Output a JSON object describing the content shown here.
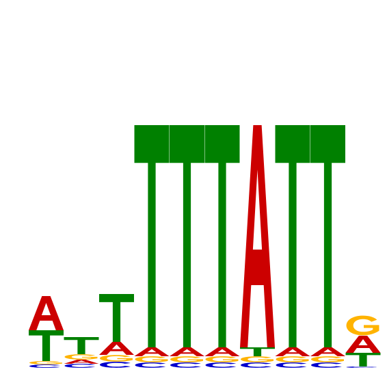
{
  "chart_data": {
    "type": "sequence-logo",
    "title": "",
    "xlabel": "",
    "ylabel": "",
    "colors": {
      "A": "#cc0000",
      "C": "#0000cc",
      "G": "#ffb300",
      "T": "#008000"
    },
    "positions": [
      {
        "index": 1,
        "letters": [
          {
            "base": "C",
            "height": 0.05
          },
          {
            "base": "G",
            "height": 0.05
          },
          {
            "base": "T",
            "height": 0.45
          },
          {
            "base": "A",
            "height": 0.5
          }
        ]
      },
      {
        "index": 2,
        "letters": [
          {
            "base": "C",
            "height": 0.06
          },
          {
            "base": "A",
            "height": 0.06
          },
          {
            "base": "G",
            "height": 0.08
          },
          {
            "base": "T",
            "height": 0.25
          }
        ]
      },
      {
        "index": 3,
        "letters": [
          {
            "base": "C",
            "height": 0.09
          },
          {
            "base": "G",
            "height": 0.1
          },
          {
            "base": "A",
            "height": 0.19
          },
          {
            "base": "T",
            "height": 0.7
          }
        ]
      },
      {
        "index": 4,
        "letters": [
          {
            "base": "C",
            "height": 0.08
          },
          {
            "base": "G",
            "height": 0.09
          },
          {
            "base": "A",
            "height": 0.13
          },
          {
            "base": "T",
            "height": 3.25
          }
        ]
      },
      {
        "index": 5,
        "letters": [
          {
            "base": "C",
            "height": 0.08
          },
          {
            "base": "G",
            "height": 0.09
          },
          {
            "base": "A",
            "height": 0.13
          },
          {
            "base": "T",
            "height": 3.25
          }
        ]
      },
      {
        "index": 6,
        "letters": [
          {
            "base": "C",
            "height": 0.08
          },
          {
            "base": "G",
            "height": 0.09
          },
          {
            "base": "A",
            "height": 0.13
          },
          {
            "base": "T",
            "height": 3.25
          }
        ]
      },
      {
        "index": 7,
        "letters": [
          {
            "base": "C",
            "height": 0.08
          },
          {
            "base": "G",
            "height": 0.09
          },
          {
            "base": "T",
            "height": 0.13
          },
          {
            "base": "A",
            "height": 3.25
          }
        ]
      },
      {
        "index": 8,
        "letters": [
          {
            "base": "C",
            "height": 0.08
          },
          {
            "base": "G",
            "height": 0.09
          },
          {
            "base": "A",
            "height": 0.13
          },
          {
            "base": "T",
            "height": 3.25
          }
        ]
      },
      {
        "index": 9,
        "letters": [
          {
            "base": "C",
            "height": 0.08
          },
          {
            "base": "G",
            "height": 0.09
          },
          {
            "base": "A",
            "height": 0.13
          },
          {
            "base": "T",
            "height": 3.25
          }
        ]
      },
      {
        "index": 10,
        "letters": [
          {
            "base": "C",
            "height": 0.02
          },
          {
            "base": "T",
            "height": 0.2
          },
          {
            "base": "A",
            "height": 0.25
          },
          {
            "base": "G",
            "height": 0.3
          }
        ]
      }
    ]
  }
}
